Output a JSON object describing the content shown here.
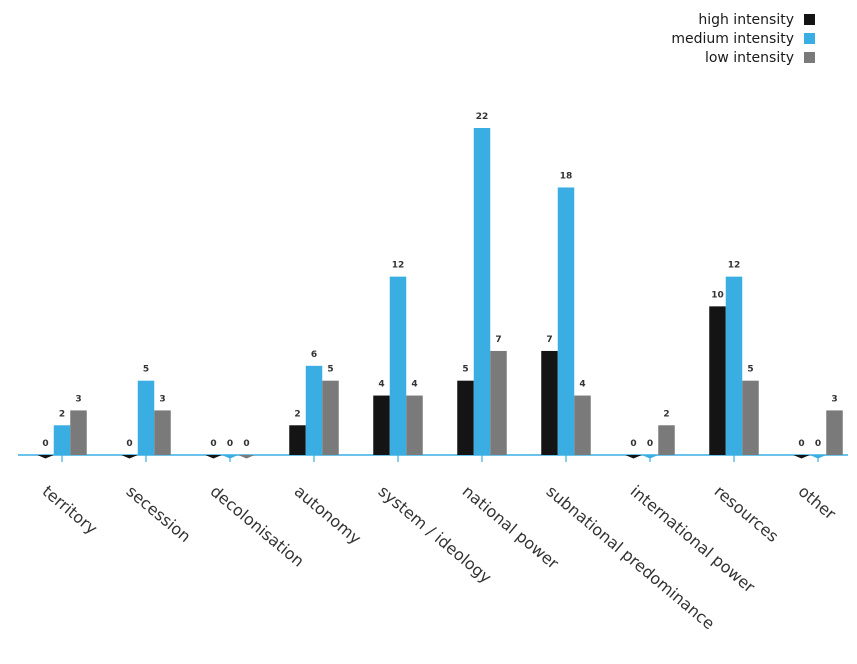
{
  "chart_data": {
    "type": "bar",
    "categories": [
      "territory",
      "secession",
      "decolonisation",
      "autonomy",
      "system / ideology",
      "national power",
      "subnational predominance",
      "international power",
      "resources",
      "other"
    ],
    "series": [
      {
        "name": "high intensity",
        "color": "#141414",
        "values": [
          0,
          0,
          0,
          2,
          4,
          5,
          7,
          0,
          10,
          0
        ]
      },
      {
        "name": "medium intensity",
        "color": "#3aaee3",
        "values": [
          2,
          5,
          0,
          6,
          12,
          22,
          18,
          0,
          12,
          0
        ]
      },
      {
        "name": "low intensity",
        "color": "#7a7a7a",
        "values": [
          3,
          3,
          0,
          5,
          4,
          7,
          4,
          2,
          5,
          3
        ]
      }
    ],
    "ylim": [
      0,
      22
    ],
    "legend_position": "top-right",
    "axis_color": "#3aaee3"
  }
}
